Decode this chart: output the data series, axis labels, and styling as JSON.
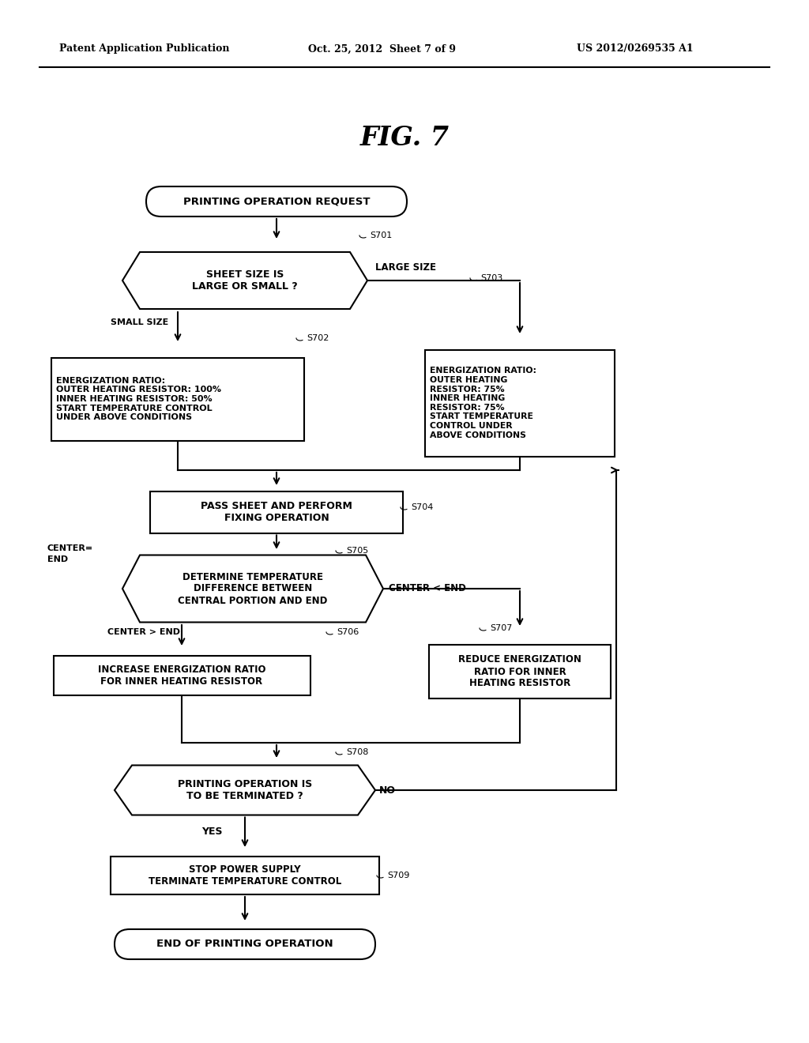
{
  "bg_color": "#ffffff",
  "title": "FIG. 7",
  "header_left": "Patent Application Publication",
  "header_mid": "Oct. 25, 2012  Sheet 7 of 9",
  "header_right": "US 2012/0269535 A1"
}
